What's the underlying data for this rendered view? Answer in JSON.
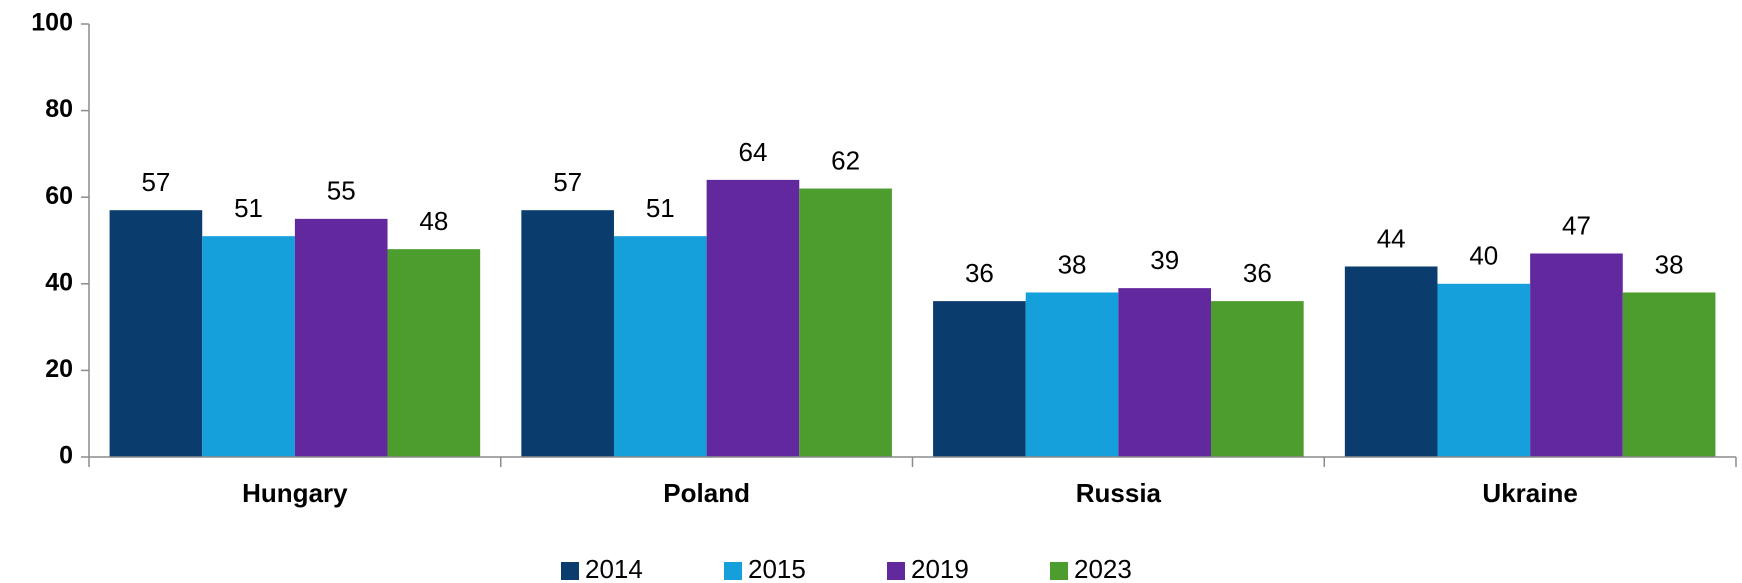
{
  "chart_data": {
    "type": "bar",
    "categories": [
      "Hungary",
      "Poland",
      "Russia",
      "Ukraine"
    ],
    "series": [
      {
        "name": "2014",
        "color": "#0b3c6e",
        "values": [
          57,
          57,
          36,
          44
        ]
      },
      {
        "name": "2015",
        "color": "#16a0db",
        "values": [
          51,
          51,
          38,
          40
        ]
      },
      {
        "name": "2019",
        "color": "#62289e",
        "values": [
          55,
          64,
          39,
          47
        ]
      },
      {
        "name": "2023",
        "color": "#4c9c2e",
        "values": [
          48,
          62,
          36,
          38
        ]
      }
    ],
    "ylim": [
      0,
      100
    ],
    "yticks": [
      0,
      20,
      40,
      60,
      80,
      100
    ],
    "grid": false,
    "legend": "bottom"
  }
}
